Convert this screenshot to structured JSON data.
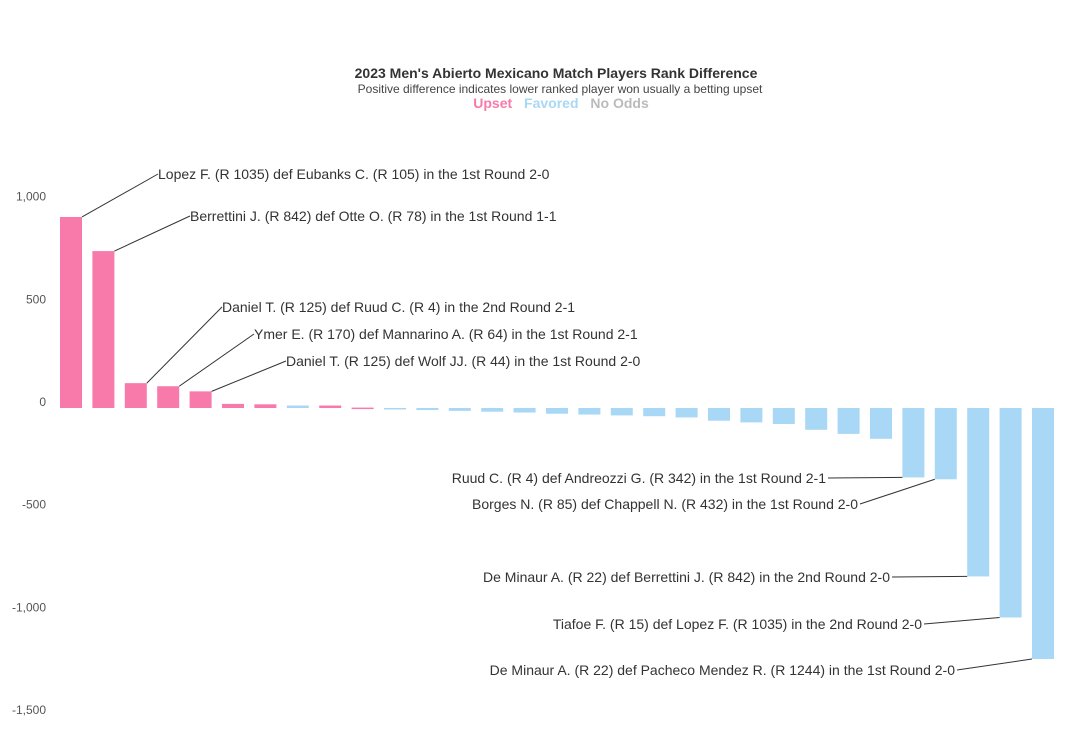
{
  "chart_data": {
    "type": "bar",
    "title": "2023 Men's Abierto Mexicano Match Players Rank Difference",
    "subtitle": "Positive difference indicates lower ranked player won usually a betting upset",
    "legend": {
      "placement": "top-center",
      "items": [
        {
          "label": "Upset",
          "color": "#f77aab"
        },
        {
          "label": "Favored",
          "color": "#a8d8f5"
        },
        {
          "label": "No Odds",
          "color": "#bbbbbb"
        }
      ]
    },
    "colors": {
      "Upset": "#f77aab",
      "Favored": "#a8d8f5"
    },
    "ylim": [
      -1500,
      1000
    ],
    "yticks": [
      1000,
      500,
      0,
      -500,
      -1000,
      -1500
    ],
    "ytick_labels": [
      "1,000",
      "500",
      "0",
      "-500",
      "-1,000",
      "-1,500"
    ],
    "grid": false,
    "bars": [
      {
        "value": 930,
        "category": "Upset",
        "annotation": "Lopez F. (R 1035) def Eubanks C. (R 105) in the 1st Round 2-0"
      },
      {
        "value": 764,
        "category": "Upset",
        "annotation": "Berrettini J. (R 842) def Otte O. (R 78) in the 1st Round 1-1"
      },
      {
        "value": 121,
        "category": "Upset",
        "annotation": "Daniel T. (R 125) def Ruud C. (R 4) in the 2nd Round 2-1"
      },
      {
        "value": 106,
        "category": "Upset",
        "annotation": "Ymer E. (R 170) def Mannarino A. (R 64) in the 1st Round 2-1"
      },
      {
        "value": 81,
        "category": "Upset",
        "annotation": "Daniel T. (R 125) def Wolf JJ. (R 44) in the 1st Round 2-0"
      },
      {
        "value": 20,
        "category": "Upset"
      },
      {
        "value": 18,
        "category": "Upset"
      },
      {
        "value": 12,
        "category": "Favored"
      },
      {
        "value": 12,
        "category": "Upset"
      },
      {
        "value": 2,
        "category": "Upset"
      },
      {
        "value": -2,
        "category": "Favored"
      },
      {
        "value": -10,
        "category": "Favored"
      },
      {
        "value": -14,
        "category": "Favored"
      },
      {
        "value": -18,
        "category": "Favored"
      },
      {
        "value": -22,
        "category": "Favored"
      },
      {
        "value": -28,
        "category": "Favored"
      },
      {
        "value": -32,
        "category": "Favored"
      },
      {
        "value": -36,
        "category": "Favored"
      },
      {
        "value": -40,
        "category": "Favored"
      },
      {
        "value": -46,
        "category": "Favored"
      },
      {
        "value": -62,
        "category": "Favored"
      },
      {
        "value": -70,
        "category": "Favored"
      },
      {
        "value": -78,
        "category": "Favored"
      },
      {
        "value": -106,
        "category": "Favored"
      },
      {
        "value": -126,
        "category": "Favored"
      },
      {
        "value": -150,
        "category": "Favored"
      },
      {
        "value": -338,
        "category": "Favored",
        "annotation": "Ruud C. (R 4) def Andreozzi G. (R 342) in the 1st Round 2-1"
      },
      {
        "value": -347,
        "category": "Favored",
        "annotation": "Borges N. (R 85) def Chappell N. (R 432) in the 1st Round 2-0"
      },
      {
        "value": -820,
        "category": "Favored",
        "annotation": "De Minaur A. (R 22) def Berrettini J. (R 842) in the 2nd Round 2-0"
      },
      {
        "value": -1020,
        "category": "Favored",
        "annotation": "Tiafoe F. (R 15) def Lopez F. (R 1035) in the 2nd Round 2-0"
      },
      {
        "value": -1222,
        "category": "Favored",
        "annotation": "De Minaur A. (R 22) def Pacheco Mendez R. (R 1244) in the 1st Round 2-0"
      }
    ]
  }
}
